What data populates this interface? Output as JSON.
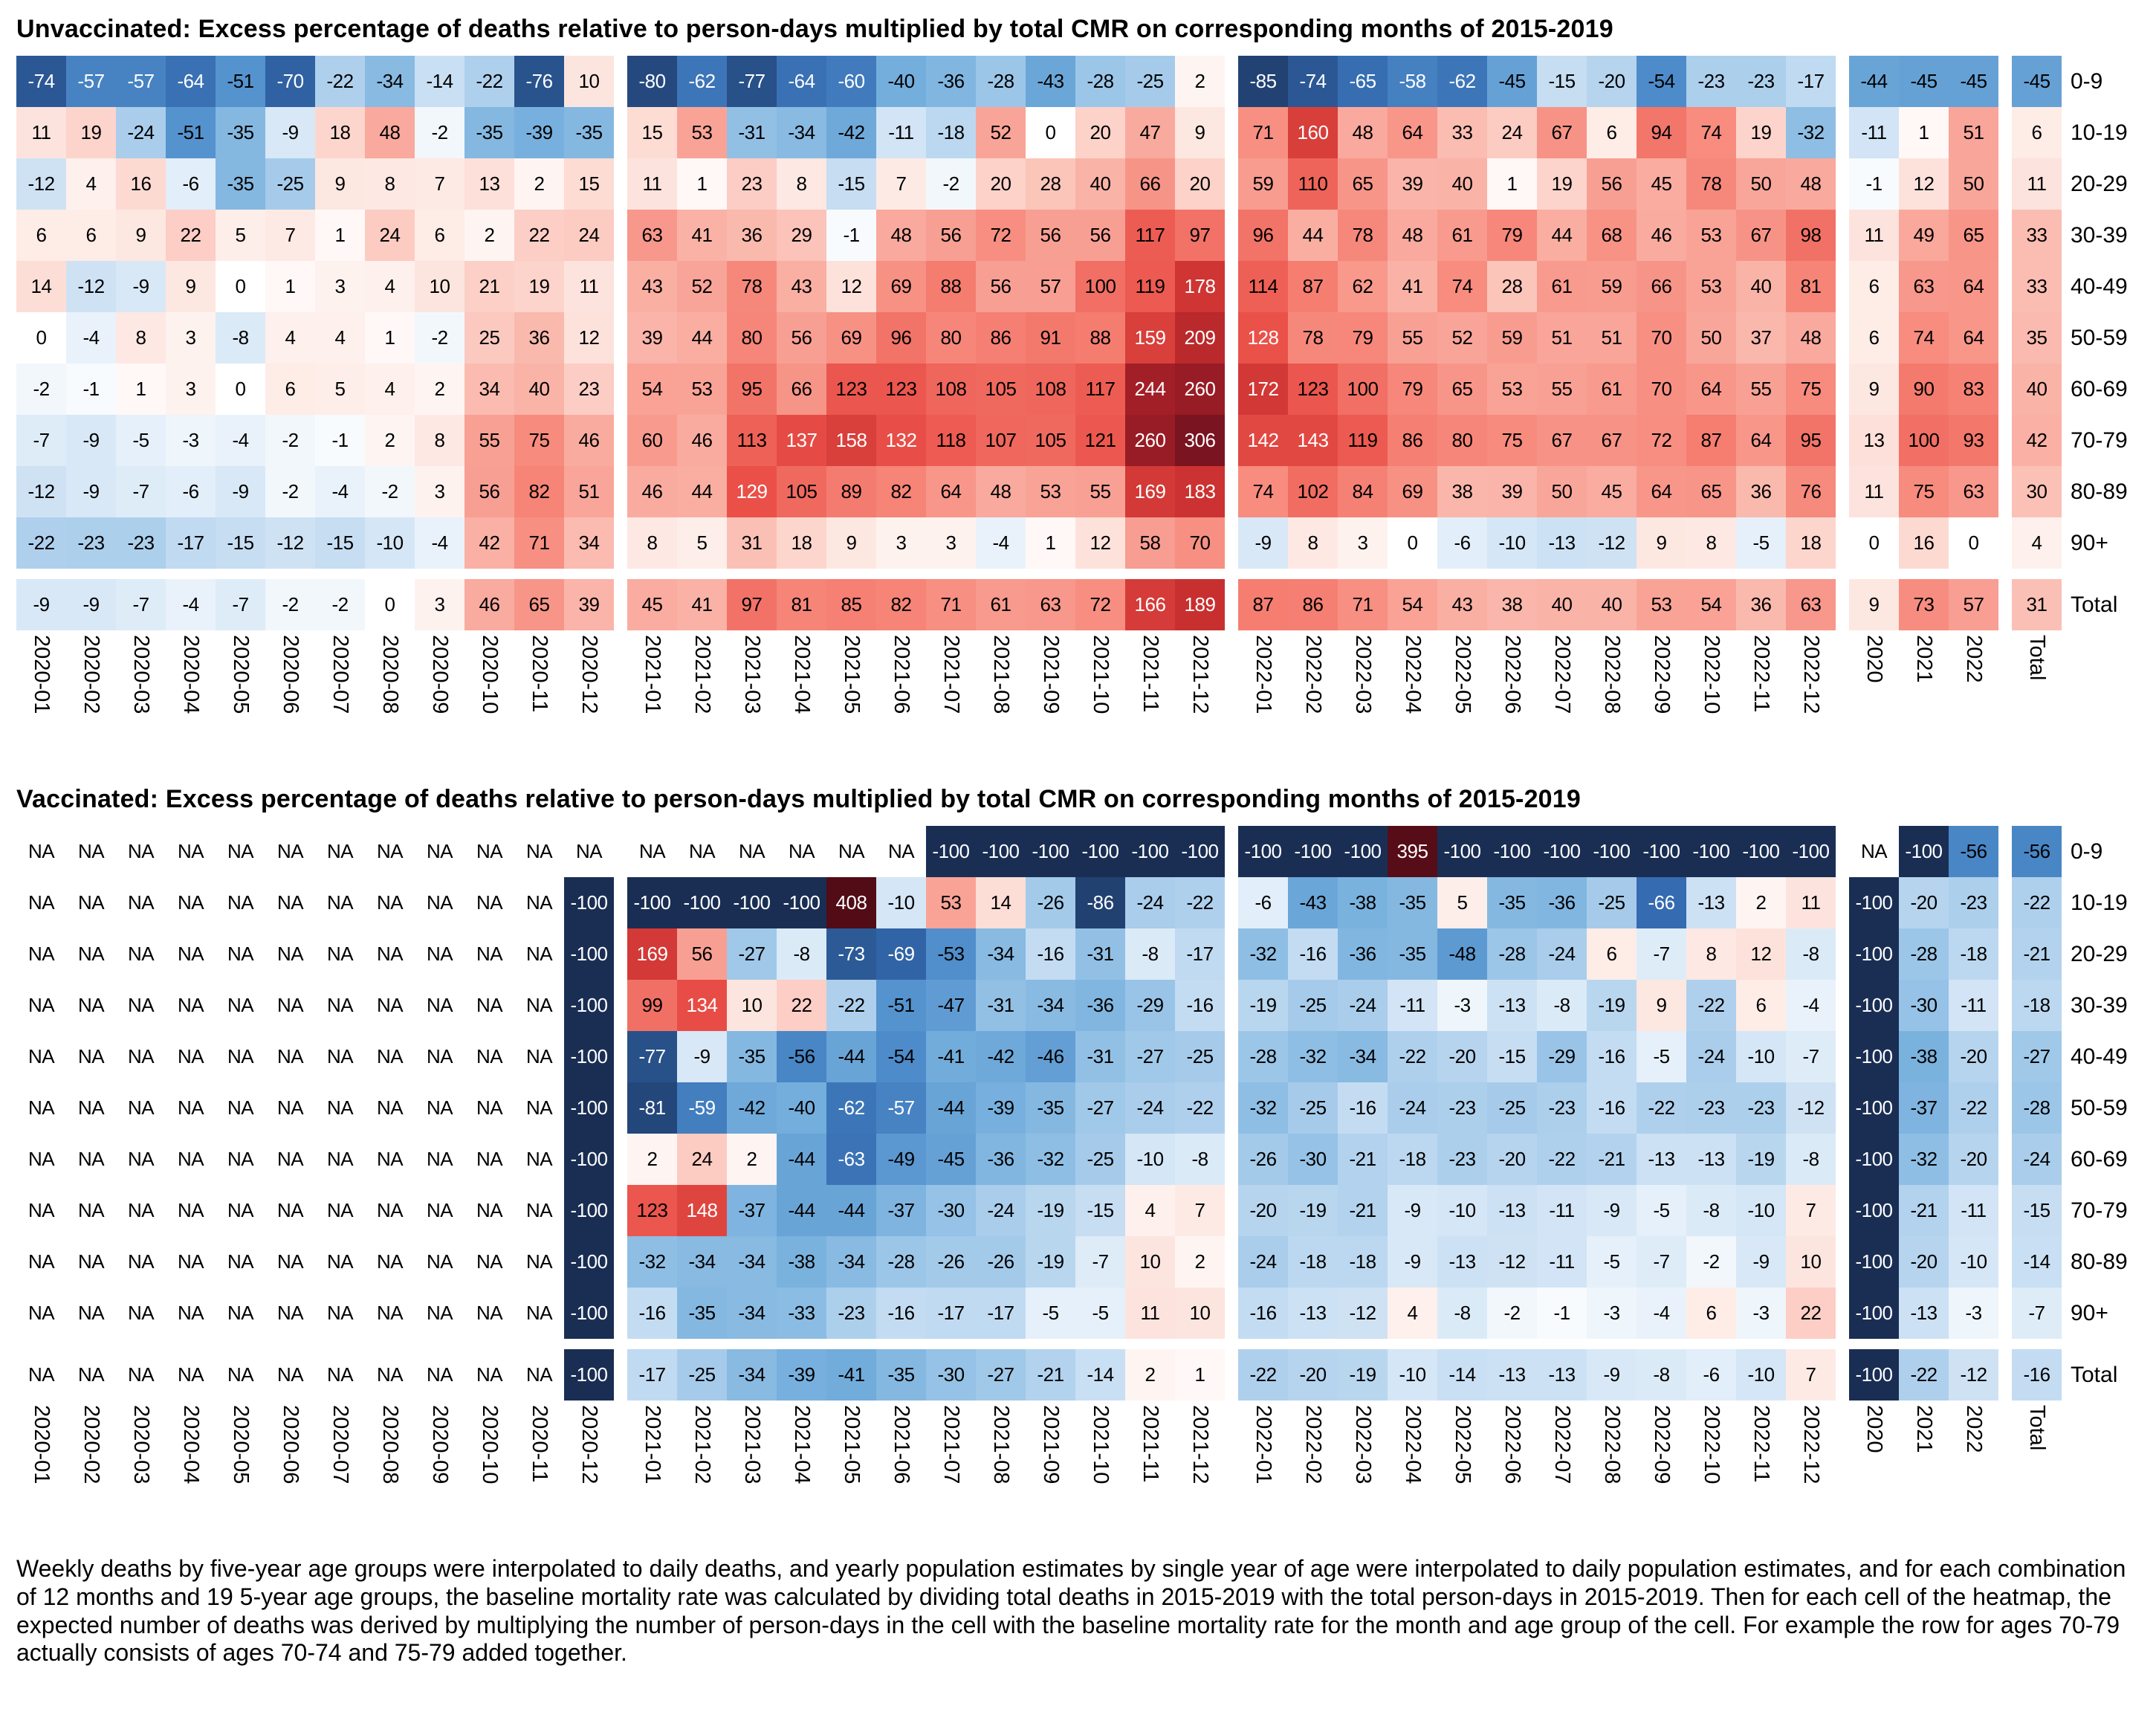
{
  "page": {
    "footnote": "Weekly deaths by five-year age groups were interpolated to daily deaths, and yearly population estimates by single year of age were interpolated to daily population estimates, and for each combination of 12 months and 19 5-year age groups, the baseline mortality rate was calculated by dividing total deaths in 2015-2019 with the total person-days in 2015-2019. Then for each cell of the heatmap, the expected number of deaths was derived by multiplying the number of person-days in the cell with the baseline mortality rate for the month and age group of the cell. For example the row for ages 70-79 actually consists of ages 70-74 and 75-79 added together."
  },
  "colors": {
    "negative_max": "#1a2e54",
    "positive_max": "#500c16",
    "na_background": "#ffffff",
    "zero": "#ffffff"
  },
  "chart_data": [
    {
      "type": "heatmap",
      "title": "Unvaccinated: Excess percentage of deaths relative to person-days multiplied by total CMR on corresponding months of 2015-2019",
      "x_labels": [
        "2020-01",
        "2020-02",
        "2020-03",
        "2020-04",
        "2020-05",
        "2020-06",
        "2020-07",
        "2020-08",
        "2020-09",
        "2020-10",
        "2020-11",
        "2020-12",
        "2021-01",
        "2021-02",
        "2021-03",
        "2021-04",
        "2021-05",
        "2021-06",
        "2021-07",
        "2021-08",
        "2021-09",
        "2021-10",
        "2021-11",
        "2021-12",
        "2022-01",
        "2022-02",
        "2022-03",
        "2022-04",
        "2022-05",
        "2022-06",
        "2022-07",
        "2022-08",
        "2022-09",
        "2022-10",
        "2022-11",
        "2022-12",
        "2020",
        "2021",
        "2022",
        "Total"
      ],
      "column_groups": [
        12,
        12,
        12,
        3,
        1
      ],
      "rows": [
        {
          "label": "0-9",
          "values": [
            -74,
            -57,
            -57,
            -64,
            -51,
            -70,
            -22,
            -34,
            -14,
            -22,
            -76,
            10,
            -80,
            -62,
            -77,
            -64,
            -60,
            -40,
            -36,
            -28,
            -43,
            -28,
            -25,
            2,
            -85,
            -74,
            -65,
            -58,
            -62,
            -45,
            -15,
            -20,
            -54,
            -23,
            -23,
            -17,
            -44,
            -45,
            -45,
            -45
          ]
        },
        {
          "label": "10-19",
          "values": [
            11,
            19,
            -24,
            -51,
            -35,
            -9,
            18,
            48,
            -2,
            -35,
            -39,
            -35,
            15,
            53,
            -31,
            -34,
            -42,
            -11,
            -18,
            52,
            0,
            20,
            47,
            9,
            71,
            160,
            48,
            64,
            33,
            24,
            67,
            6,
            94,
            74,
            19,
            -32,
            -11,
            1,
            51,
            6
          ]
        },
        {
          "label": "20-29",
          "values": [
            -12,
            4,
            16,
            -6,
            -35,
            -25,
            9,
            8,
            7,
            13,
            2,
            15,
            11,
            1,
            23,
            8,
            -15,
            7,
            -2,
            20,
            28,
            40,
            66,
            20,
            59,
            110,
            65,
            39,
            40,
            1,
            19,
            56,
            45,
            78,
            50,
            48,
            -1,
            12,
            50,
            11
          ]
        },
        {
          "label": "30-39",
          "values": [
            6,
            6,
            9,
            22,
            5,
            7,
            1,
            24,
            6,
            2,
            22,
            24,
            63,
            41,
            36,
            29,
            -1,
            48,
            56,
            72,
            56,
            56,
            117,
            97,
            96,
            44,
            78,
            48,
            61,
            79,
            44,
            68,
            46,
            53,
            67,
            98,
            11,
            49,
            65,
            33
          ]
        },
        {
          "label": "40-49",
          "values": [
            14,
            -12,
            -9,
            9,
            0,
            1,
            3,
            4,
            10,
            21,
            19,
            11,
            43,
            52,
            78,
            43,
            12,
            69,
            88,
            56,
            57,
            100,
            119,
            178,
            114,
            87,
            62,
            41,
            74,
            28,
            61,
            59,
            66,
            53,
            40,
            81,
            6,
            63,
            64,
            33
          ]
        },
        {
          "label": "50-59",
          "values": [
            0,
            -4,
            8,
            3,
            -8,
            4,
            4,
            1,
            -2,
            25,
            36,
            12,
            39,
            44,
            80,
            56,
            69,
            96,
            80,
            86,
            91,
            88,
            159,
            209,
            128,
            78,
            79,
            55,
            52,
            59,
            51,
            51,
            70,
            50,
            37,
            48,
            6,
            74,
            64,
            35
          ]
        },
        {
          "label": "60-69",
          "values": [
            -2,
            -1,
            1,
            3,
            0,
            6,
            5,
            4,
            2,
            34,
            40,
            23,
            54,
            53,
            95,
            66,
            123,
            123,
            108,
            105,
            108,
            117,
            244,
            260,
            172,
            123,
            100,
            79,
            65,
            53,
            55,
            61,
            70,
            64,
            55,
            75,
            9,
            90,
            83,
            40
          ]
        },
        {
          "label": "70-79",
          "values": [
            -7,
            -9,
            -5,
            -3,
            -4,
            -2,
            -1,
            2,
            8,
            55,
            75,
            46,
            60,
            46,
            113,
            137,
            158,
            132,
            118,
            107,
            105,
            121,
            260,
            306,
            142,
            143,
            119,
            86,
            80,
            75,
            67,
            67,
            72,
            87,
            64,
            95,
            13,
            100,
            93,
            42
          ]
        },
        {
          "label": "80-89",
          "values": [
            -12,
            -9,
            -7,
            -6,
            -9,
            -2,
            -4,
            -2,
            3,
            56,
            82,
            51,
            46,
            44,
            129,
            105,
            89,
            82,
            64,
            48,
            53,
            55,
            169,
            183,
            74,
            102,
            84,
            69,
            38,
            39,
            50,
            45,
            64,
            65,
            36,
            76,
            11,
            75,
            63,
            30
          ]
        },
        {
          "label": "90+",
          "values": [
            -22,
            -23,
            -23,
            -17,
            -15,
            -12,
            -15,
            -10,
            -4,
            42,
            71,
            34,
            8,
            5,
            31,
            18,
            9,
            3,
            3,
            -4,
            1,
            12,
            58,
            70,
            -9,
            8,
            3,
            0,
            -6,
            -10,
            -13,
            -12,
            9,
            8,
            -5,
            18,
            0,
            16,
            0,
            4
          ]
        },
        {
          "label": "Total",
          "values": [
            -9,
            -9,
            -7,
            -4,
            -7,
            -2,
            -2,
            0,
            3,
            46,
            65,
            39,
            45,
            41,
            97,
            81,
            85,
            82,
            71,
            61,
            63,
            72,
            166,
            189,
            87,
            86,
            71,
            54,
            43,
            38,
            40,
            40,
            53,
            54,
            36,
            63,
            9,
            73,
            57,
            31
          ]
        }
      ]
    },
    {
      "type": "heatmap",
      "title": "Vaccinated: Excess percentage of deaths relative to person-days multiplied by total CMR on corresponding months of 2015-2019",
      "x_labels": [
        "2020-01",
        "2020-02",
        "2020-03",
        "2020-04",
        "2020-05",
        "2020-06",
        "2020-07",
        "2020-08",
        "2020-09",
        "2020-10",
        "2020-11",
        "2020-12",
        "2021-01",
        "2021-02",
        "2021-03",
        "2021-04",
        "2021-05",
        "2021-06",
        "2021-07",
        "2021-08",
        "2021-09",
        "2021-10",
        "2021-11",
        "2021-12",
        "2022-01",
        "2022-02",
        "2022-03",
        "2022-04",
        "2022-05",
        "2022-06",
        "2022-07",
        "2022-08",
        "2022-09",
        "2022-10",
        "2022-11",
        "2022-12",
        "2020",
        "2021",
        "2022",
        "Total"
      ],
      "column_groups": [
        12,
        12,
        12,
        3,
        1
      ],
      "rows": [
        {
          "label": "0-9",
          "values": [
            "NA",
            "NA",
            "NA",
            "NA",
            "NA",
            "NA",
            "NA",
            "NA",
            "NA",
            "NA",
            "NA",
            "NA",
            "NA",
            "NA",
            "NA",
            "NA",
            "NA",
            "NA",
            -100,
            -100,
            -100,
            -100,
            -100,
            -100,
            -100,
            -100,
            -100,
            395,
            -100,
            -100,
            -100,
            -100,
            -100,
            -100,
            -100,
            -100,
            "NA",
            -100,
            -56,
            -56
          ]
        },
        {
          "label": "10-19",
          "values": [
            "NA",
            "NA",
            "NA",
            "NA",
            "NA",
            "NA",
            "NA",
            "NA",
            "NA",
            "NA",
            "NA",
            -100,
            -100,
            -100,
            -100,
            -100,
            408,
            -10,
            53,
            14,
            -26,
            -86,
            -24,
            -22,
            -6,
            -43,
            -38,
            -35,
            5,
            -35,
            -36,
            -25,
            -66,
            -13,
            2,
            11,
            -100,
            -20,
            -23,
            -22
          ]
        },
        {
          "label": "20-29",
          "values": [
            "NA",
            "NA",
            "NA",
            "NA",
            "NA",
            "NA",
            "NA",
            "NA",
            "NA",
            "NA",
            "NA",
            -100,
            169,
            56,
            -27,
            -8,
            -73,
            -69,
            -53,
            -34,
            -16,
            -31,
            -8,
            -17,
            -32,
            -16,
            -36,
            -35,
            -48,
            -28,
            -24,
            6,
            -7,
            8,
            12,
            -8,
            -100,
            -28,
            -18,
            -21
          ]
        },
        {
          "label": "30-39",
          "values": [
            "NA",
            "NA",
            "NA",
            "NA",
            "NA",
            "NA",
            "NA",
            "NA",
            "NA",
            "NA",
            "NA",
            -100,
            99,
            134,
            10,
            22,
            -22,
            -51,
            -47,
            -31,
            -34,
            -36,
            -29,
            -16,
            -19,
            -25,
            -24,
            -11,
            -3,
            -13,
            -8,
            -19,
            9,
            -22,
            6,
            -4,
            -100,
            -30,
            -11,
            -18
          ]
        },
        {
          "label": "40-49",
          "values": [
            "NA",
            "NA",
            "NA",
            "NA",
            "NA",
            "NA",
            "NA",
            "NA",
            "NA",
            "NA",
            "NA",
            -100,
            -77,
            -9,
            -35,
            -56,
            -44,
            -54,
            -41,
            -42,
            -46,
            -31,
            -27,
            -25,
            -28,
            -32,
            -34,
            -22,
            -20,
            -15,
            -29,
            -16,
            -5,
            -24,
            -10,
            -7,
            -100,
            -38,
            -20,
            -27
          ]
        },
        {
          "label": "50-59",
          "values": [
            "NA",
            "NA",
            "NA",
            "NA",
            "NA",
            "NA",
            "NA",
            "NA",
            "NA",
            "NA",
            "NA",
            -100,
            -81,
            -59,
            -42,
            -40,
            -62,
            -57,
            -44,
            -39,
            -35,
            -27,
            -24,
            -22,
            -32,
            -25,
            -16,
            -24,
            -23,
            -25,
            -23,
            -16,
            -22,
            -23,
            -23,
            -12,
            -100,
            -37,
            -22,
            -28
          ]
        },
        {
          "label": "60-69",
          "values": [
            "NA",
            "NA",
            "NA",
            "NA",
            "NA",
            "NA",
            "NA",
            "NA",
            "NA",
            "NA",
            "NA",
            -100,
            2,
            24,
            2,
            -44,
            -63,
            -49,
            -45,
            -36,
            -32,
            -25,
            -10,
            -8,
            -26,
            -30,
            -21,
            -18,
            -23,
            -20,
            -22,
            -21,
            -13,
            -13,
            -19,
            -8,
            -100,
            -32,
            -20,
            -24
          ]
        },
        {
          "label": "70-79",
          "values": [
            "NA",
            "NA",
            "NA",
            "NA",
            "NA",
            "NA",
            "NA",
            "NA",
            "NA",
            "NA",
            "NA",
            -100,
            123,
            148,
            -37,
            -44,
            -44,
            -37,
            -30,
            -24,
            -19,
            -15,
            4,
            7,
            -20,
            -19,
            -21,
            -9,
            -10,
            -13,
            -11,
            -9,
            -5,
            -8,
            -10,
            7,
            -100,
            -21,
            -11,
            -15
          ]
        },
        {
          "label": "80-89",
          "values": [
            "NA",
            "NA",
            "NA",
            "NA",
            "NA",
            "NA",
            "NA",
            "NA",
            "NA",
            "NA",
            "NA",
            -100,
            -32,
            -34,
            -34,
            -38,
            -34,
            -28,
            -26,
            -26,
            -19,
            -7,
            10,
            2,
            -24,
            -18,
            -18,
            -9,
            -13,
            -12,
            -11,
            -5,
            -7,
            -2,
            -9,
            10,
            -100,
            -20,
            -10,
            -14
          ]
        },
        {
          "label": "90+",
          "values": [
            "NA",
            "NA",
            "NA",
            "NA",
            "NA",
            "NA",
            "NA",
            "NA",
            "NA",
            "NA",
            "NA",
            -100,
            -16,
            -35,
            -34,
            -33,
            -23,
            -16,
            -17,
            -17,
            -5,
            -5,
            11,
            10,
            -16,
            -13,
            -12,
            4,
            -8,
            -2,
            -1,
            -3,
            -4,
            6,
            -3,
            22,
            -100,
            -13,
            -3,
            -7
          ]
        },
        {
          "label": "Total",
          "values": [
            "NA",
            "NA",
            "NA",
            "NA",
            "NA",
            "NA",
            "NA",
            "NA",
            "NA",
            "NA",
            "NA",
            -100,
            -17,
            -25,
            -34,
            -39,
            -41,
            -35,
            -30,
            -27,
            -21,
            -14,
            2,
            1,
            -22,
            -20,
            -19,
            -10,
            -14,
            -13,
            -13,
            -9,
            -8,
            -6,
            -10,
            7,
            -100,
            -22,
            -12,
            -16
          ]
        }
      ]
    }
  ]
}
